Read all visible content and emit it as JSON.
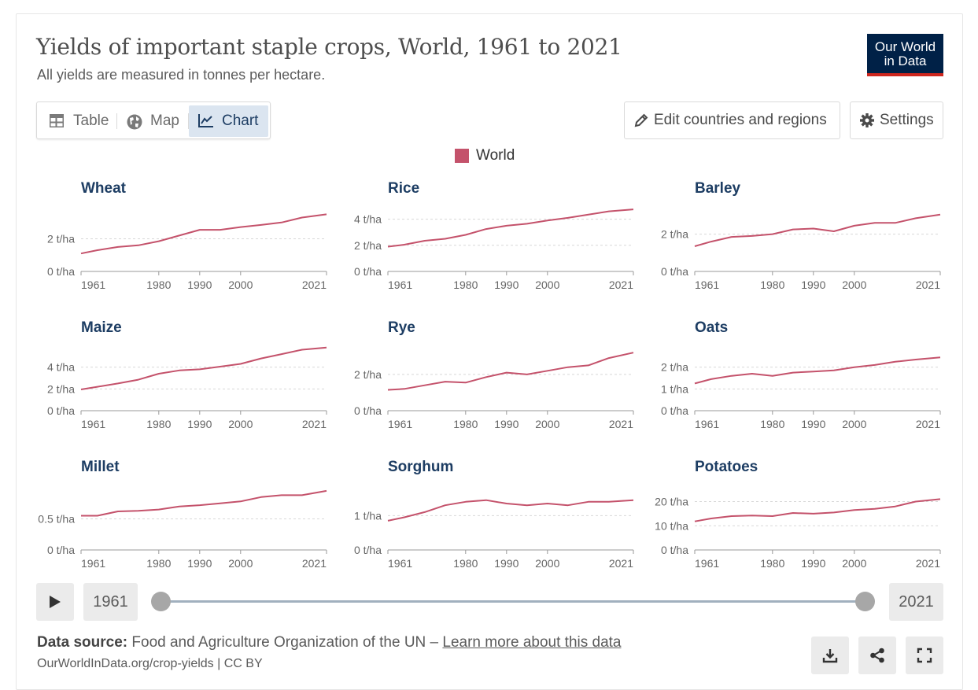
{
  "header": {
    "title": "Yields of important staple crops, World, 1961 to 2021",
    "subtitle": "All yields are measured in tonnes per hectare.",
    "logo_line1": "Our World",
    "logo_line2": "in Data"
  },
  "tabs": [
    {
      "label": "Table",
      "icon": "table-icon"
    },
    {
      "label": "Map",
      "icon": "globe-icon"
    },
    {
      "label": "Chart",
      "icon": "line-chart-icon",
      "active": true
    }
  ],
  "toolbar": {
    "edit_label": "Edit countries and regions",
    "settings_label": "Settings"
  },
  "legend": {
    "label": "World",
    "color": "#c4526b"
  },
  "timeline": {
    "start_year": "1961",
    "end_year": "2021"
  },
  "footer": {
    "source_label": "Data source:",
    "source_text": "Food and Agriculture Organization of the UN –",
    "learn_more": "Learn more about this data",
    "url": "OurWorldInData.org/crop-yields | CC BY"
  },
  "colors": {
    "line": "#c4526b",
    "brand": "#002147",
    "brand_accent": "#ce261e",
    "title": "#1d3d63"
  },
  "chart_data": [
    {
      "type": "line",
      "title": "Wheat",
      "unit": "t/ha",
      "series_name": "World",
      "yticks": [
        0,
        2
      ],
      "ylim": [
        0,
        4.0
      ],
      "xticks": [
        1961,
        1980,
        1990,
        2000,
        2021
      ],
      "xlim": [
        1961,
        2021
      ],
      "x": [
        1961,
        1965,
        1970,
        1975,
        1980,
        1985,
        1990,
        1995,
        2000,
        2005,
        2010,
        2015,
        2021
      ],
      "y": [
        1.1,
        1.3,
        1.5,
        1.6,
        1.85,
        2.2,
        2.55,
        2.55,
        2.72,
        2.85,
        3.0,
        3.3,
        3.5
      ]
    },
    {
      "type": "line",
      "title": "Rice",
      "unit": "t/ha",
      "series_name": "World",
      "yticks": [
        0,
        2,
        4
      ],
      "ylim": [
        0,
        5.0
      ],
      "xticks": [
        1961,
        1980,
        1990,
        2000,
        2021
      ],
      "xlim": [
        1961,
        2021
      ],
      "x": [
        1961,
        1965,
        1970,
        1975,
        1980,
        1985,
        1990,
        1995,
        2000,
        2005,
        2010,
        2015,
        2021
      ],
      "y": [
        1.9,
        2.05,
        2.35,
        2.5,
        2.8,
        3.25,
        3.5,
        3.65,
        3.9,
        4.1,
        4.35,
        4.6,
        4.75
      ]
    },
    {
      "type": "line",
      "title": "Barley",
      "unit": "t/ha",
      "series_name": "World",
      "yticks": [
        0,
        2
      ],
      "ylim": [
        0,
        3.5
      ],
      "xticks": [
        1961,
        1980,
        1990,
        2000,
        2021
      ],
      "xlim": [
        1961,
        2021
      ],
      "x": [
        1961,
        1965,
        1970,
        1975,
        1980,
        1985,
        1990,
        1995,
        2000,
        2005,
        2010,
        2015,
        2021
      ],
      "y": [
        1.35,
        1.6,
        1.85,
        1.9,
        2.0,
        2.25,
        2.3,
        2.15,
        2.45,
        2.6,
        2.6,
        2.85,
        3.05
      ]
    },
    {
      "type": "line",
      "title": "Maize",
      "unit": "t/ha",
      "series_name": "World",
      "yticks": [
        0,
        2,
        4
      ],
      "ylim": [
        0,
        6.0
      ],
      "xticks": [
        1961,
        1980,
        1990,
        2000,
        2021
      ],
      "xlim": [
        1961,
        2021
      ],
      "x": [
        1961,
        1965,
        1970,
        1975,
        1980,
        1985,
        1990,
        1995,
        2000,
        2005,
        2010,
        2015,
        2021
      ],
      "y": [
        1.95,
        2.2,
        2.5,
        2.85,
        3.4,
        3.7,
        3.8,
        4.05,
        4.3,
        4.8,
        5.2,
        5.6,
        5.8
      ]
    },
    {
      "type": "line",
      "title": "Rye",
      "unit": "t/ha",
      "series_name": "World",
      "yticks": [
        0,
        2
      ],
      "ylim": [
        0,
        3.6
      ],
      "xticks": [
        1961,
        1980,
        1990,
        2000,
        2021
      ],
      "xlim": [
        1961,
        2021
      ],
      "x": [
        1961,
        1965,
        1970,
        1975,
        1980,
        1985,
        1990,
        1995,
        2000,
        2005,
        2010,
        2015,
        2021
      ],
      "y": [
        1.15,
        1.2,
        1.4,
        1.6,
        1.55,
        1.85,
        2.1,
        2.0,
        2.2,
        2.4,
        2.5,
        2.9,
        3.2
      ]
    },
    {
      "type": "line",
      "title": "Oats",
      "unit": "t/ha",
      "series_name": "World",
      "yticks": [
        0,
        1,
        2
      ],
      "ylim": [
        0,
        3.0
      ],
      "xticks": [
        1961,
        1980,
        1990,
        2000,
        2021
      ],
      "xlim": [
        1961,
        2021
      ],
      "x": [
        1961,
        1965,
        1970,
        1975,
        1980,
        1985,
        1990,
        1995,
        2000,
        2005,
        2010,
        2015,
        2021
      ],
      "y": [
        1.25,
        1.45,
        1.6,
        1.7,
        1.6,
        1.75,
        1.8,
        1.85,
        2.0,
        2.1,
        2.25,
        2.35,
        2.45
      ]
    },
    {
      "type": "line",
      "title": "Millet",
      "unit": "t/ha",
      "series_name": "World",
      "yticks": [
        0,
        0.5
      ],
      "ylim": [
        0,
        1.05
      ],
      "xticks": [
        1961,
        1980,
        1990,
        2000,
        2021
      ],
      "xlim": [
        1961,
        2021
      ],
      "x": [
        1961,
        1965,
        1970,
        1975,
        1980,
        1985,
        1990,
        1995,
        2000,
        2005,
        2010,
        2015,
        2021
      ],
      "y": [
        0.55,
        0.55,
        0.62,
        0.63,
        0.65,
        0.7,
        0.72,
        0.75,
        0.78,
        0.85,
        0.88,
        0.88,
        0.95
      ]
    },
    {
      "type": "line",
      "title": "Sorghum",
      "unit": "t/ha",
      "series_name": "World",
      "yticks": [
        0,
        1
      ],
      "ylim": [
        0,
        1.9
      ],
      "xticks": [
        1961,
        1980,
        1990,
        2000,
        2021
      ],
      "xlim": [
        1961,
        2021
      ],
      "x": [
        1961,
        1965,
        1970,
        1975,
        1980,
        1985,
        1990,
        1995,
        2000,
        2005,
        2010,
        2015,
        2021
      ],
      "y": [
        0.85,
        0.95,
        1.1,
        1.3,
        1.4,
        1.45,
        1.35,
        1.3,
        1.35,
        1.3,
        1.4,
        1.4,
        1.45
      ]
    },
    {
      "type": "line",
      "title": "Potatoes",
      "unit": "t/ha",
      "series_name": "World",
      "yticks": [
        0,
        10,
        20
      ],
      "ylim": [
        0,
        27.0
      ],
      "xticks": [
        1961,
        1980,
        1990,
        2000,
        2021
      ],
      "xlim": [
        1961,
        2021
      ],
      "x": [
        1961,
        1965,
        1970,
        1975,
        1980,
        1985,
        1990,
        1995,
        2000,
        2005,
        2010,
        2015,
        2021
      ],
      "y": [
        11.8,
        13.0,
        14.0,
        14.2,
        14.0,
        15.3,
        15.0,
        15.5,
        16.5,
        17.0,
        18.0,
        20.0,
        21.0
      ]
    }
  ]
}
